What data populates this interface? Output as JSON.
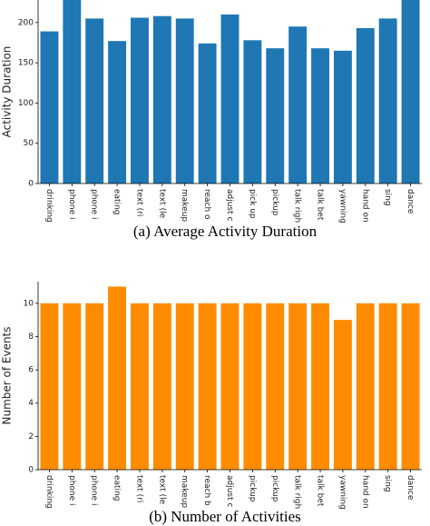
{
  "chart_data": [
    {
      "type": "bar",
      "title": "(a) Average Activity Duration",
      "y_label": "Activity Duration",
      "color": "#1f77b4",
      "categories": [
        "drinking",
        "phone i",
        "phone i",
        "eating",
        "text (ri",
        "text (le",
        "makeup",
        "reach o",
        "adjust c",
        "pick up",
        "pickup",
        "talk righ",
        "talk bet",
        "yawning",
        "hand on",
        "sing",
        "dance"
      ],
      "values": [
        189,
        235,
        205,
        177,
        206,
        208,
        205,
        174,
        210,
        178,
        168,
        195,
        168,
        165,
        193,
        205,
        235
      ],
      "ylim": [
        0,
        228
      ],
      "yticks": [
        0,
        50,
        100,
        150,
        200
      ]
    },
    {
      "type": "bar",
      "title": "(b) Number of Activities",
      "y_label": "Number of Events",
      "color": "#ff8c00",
      "categories": [
        "drinking",
        "phone i",
        "phone i",
        "eating",
        "text (ri",
        "text (le",
        "makeup",
        "reach b",
        "adjust c",
        "pickup",
        "pickup",
        "talk righ",
        "talk bet",
        "yawning",
        "hand on",
        "sing",
        "dance"
      ],
      "values": [
        10,
        10,
        10,
        11,
        10,
        10,
        10,
        10,
        10,
        10,
        10,
        10,
        10,
        9,
        10,
        10,
        10
      ],
      "ylim": [
        0,
        11.3
      ],
      "yticks": [
        0,
        2,
        4,
        6,
        8,
        10
      ]
    }
  ]
}
